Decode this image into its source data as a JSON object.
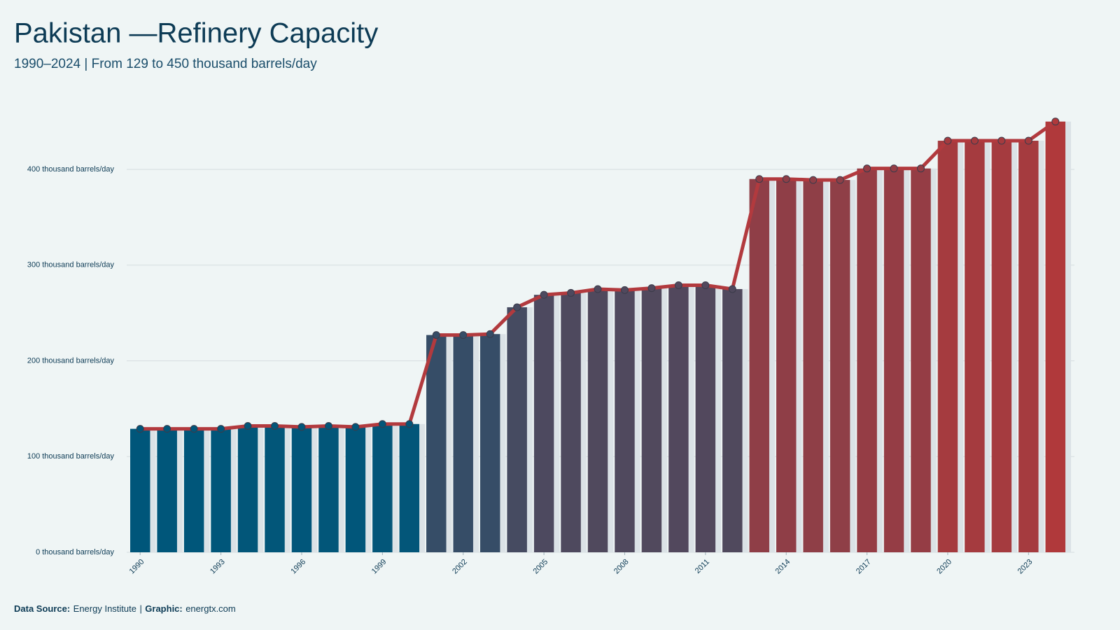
{
  "chart_data": {
    "type": "bar_line",
    "title": "Pakistan —Refinery Capacity",
    "subtitle": "1990–2024 | From 129 to 450 thousand barrels/day",
    "x": [
      1990,
      1991,
      1992,
      1993,
      1994,
      1995,
      1996,
      1997,
      1998,
      1999,
      2000,
      2001,
      2002,
      2003,
      2004,
      2005,
      2006,
      2007,
      2008,
      2009,
      2010,
      2011,
      2012,
      2013,
      2014,
      2015,
      2016,
      2017,
      2018,
      2019,
      2020,
      2021,
      2022,
      2023,
      2024
    ],
    "values": [
      129,
      129,
      129,
      129,
      132,
      132,
      131,
      132,
      131,
      134,
      134,
      227,
      227,
      228,
      256,
      269,
      271,
      275,
      274,
      276,
      279,
      279,
      275,
      390,
      390,
      389,
      389,
      401,
      401,
      401,
      430,
      430,
      430,
      430,
      450
    ],
    "xlim": [
      1989.5,
      2024.5
    ],
    "xticks": [
      1990,
      1993,
      1996,
      1999,
      2002,
      2005,
      2008,
      2011,
      2014,
      2017,
      2020,
      2023
    ],
    "ylim": [
      0,
      460
    ],
    "yticks": [
      {
        "value": 0,
        "label": "0 thousand barrels/day"
      },
      {
        "value": 100,
        "label": "100 thousand barrels/day"
      },
      {
        "value": 200,
        "label": "200 thousand barrels/day"
      },
      {
        "value": 300,
        "label": "300 thousand barrels/day"
      },
      {
        "value": 400,
        "label": "400 thousand barrels/day"
      }
    ],
    "grid": true,
    "color_scale": [
      "#00567a",
      "#b0393b"
    ],
    "line_color": "#b23a3e",
    "footer": {
      "source_label": "Data Source:",
      "source": "Energy Institute",
      "separator": "|",
      "graphic_label": "Graphic:",
      "graphic": "energtx.com"
    }
  }
}
